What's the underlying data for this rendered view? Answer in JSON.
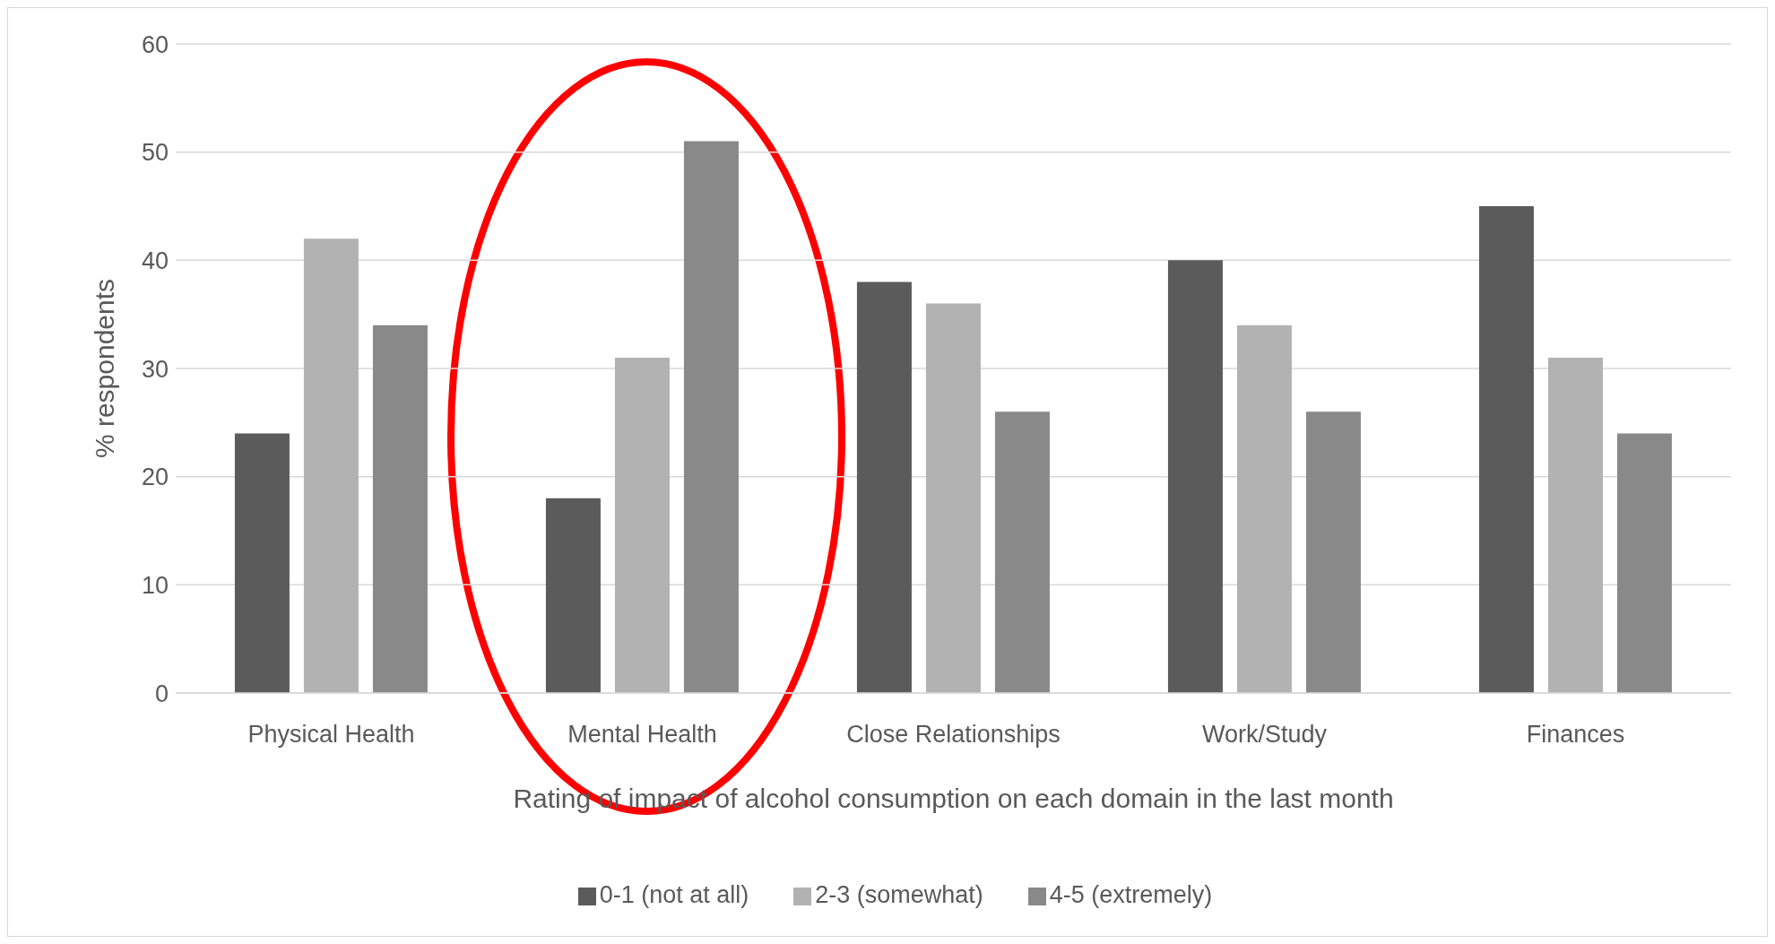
{
  "chart_data": {
    "type": "bar",
    "categories": [
      "Physical Health",
      "Mental Health",
      "Close Relationships",
      "Work/Study",
      "Finances"
    ],
    "series": [
      {
        "name": "0-1 (not at all)",
        "color": "#5b5b5b",
        "values": [
          24,
          18,
          38,
          40,
          45
        ]
      },
      {
        "name": "2-3 (somewhat)",
        "color": "#b2b2b2",
        "values": [
          42,
          31,
          36,
          34,
          31
        ]
      },
      {
        "name": "4-5 (extremely)",
        "color": "#898989",
        "values": [
          34,
          51,
          26,
          26,
          24
        ]
      }
    ],
    "xlabel": "Rating of impact of alcohol consumption on each domain in the last month",
    "ylabel": "% respondents",
    "ylim": [
      0,
      60
    ],
    "yticks": [
      0,
      10,
      20,
      30,
      40,
      50,
      60
    ],
    "grid": "y",
    "legend": "bottom"
  }
}
